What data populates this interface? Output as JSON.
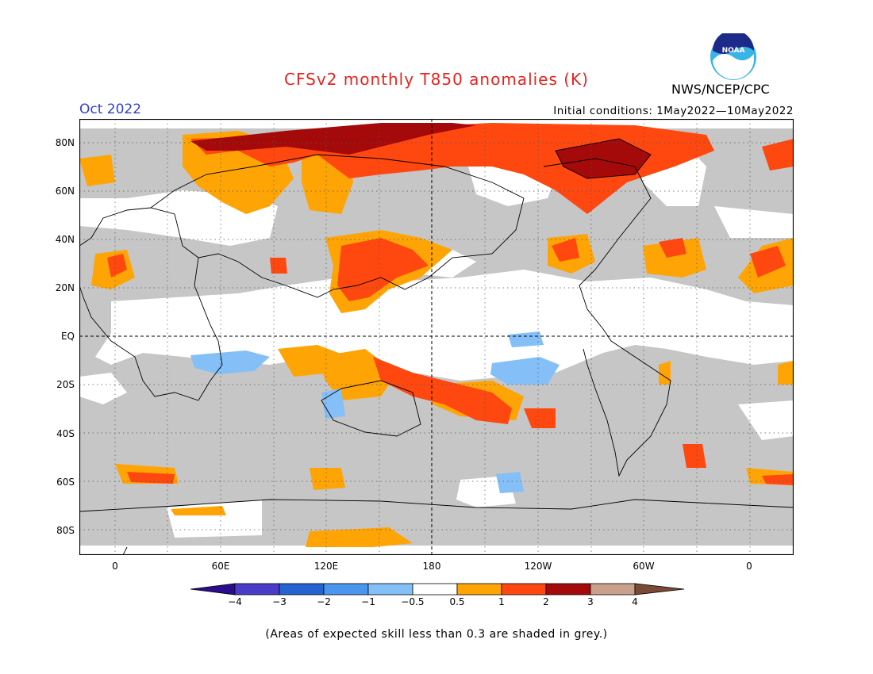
{
  "header": {
    "title": "CFSv2 monthly T850 anomalies (K)",
    "month": "Oct 2022",
    "initial_conditions": "Initial conditions: 1May2022—10May2022",
    "agency": "NWS/NCEP/CPC",
    "logo_text": "NOAA"
  },
  "axes": {
    "lat_labels": [
      "80N",
      "60N",
      "40N",
      "20N",
      "EQ",
      "20S",
      "40S",
      "60S",
      "80S"
    ],
    "lon_labels": [
      "0",
      "60E",
      "120E",
      "180",
      "120W",
      "60W",
      "0"
    ]
  },
  "colorbar": {
    "ticks": [
      "−4",
      "−3",
      "−2",
      "−1",
      "−0.5",
      "0.5",
      "1",
      "2",
      "3",
      "4"
    ],
    "colors": [
      "#2a0c8c",
      "#4a3cc8",
      "#2563d0",
      "#4a96ee",
      "#84bff8",
      "#ffffff",
      "#ffa405",
      "#ff4710",
      "#a50a0a",
      "#c8a08c",
      "#7a4a36"
    ],
    "low_skill_color": "#c6c6c6"
  },
  "footnote": "(Areas of expected skill less than 0.3 are shaded in grey.)"
}
